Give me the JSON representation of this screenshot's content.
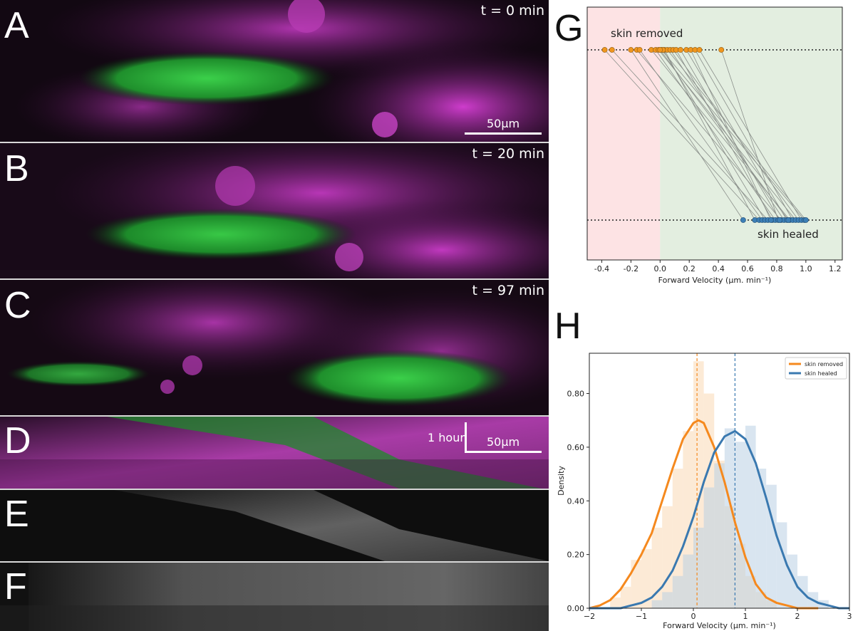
{
  "panels": {
    "a": {
      "label": "A",
      "time": "t = 0 min",
      "scale": "50µm"
    },
    "b": {
      "label": "B",
      "time": "t = 20 min"
    },
    "c": {
      "label": "C",
      "time": "t = 97 min"
    },
    "d": {
      "label": "D",
      "time_scale": "1 hour",
      "scale": "50µm"
    },
    "e": {
      "label": "E"
    },
    "f": {
      "label": "F"
    }
  },
  "chart_data": [
    {
      "id": "G",
      "label": "G",
      "type": "scatter",
      "xlabel": "Forward Velocity (µm. min⁻¹)",
      "xlim": [
        -0.5,
        1.25
      ],
      "xticks": [
        "-0.4",
        "-0.2",
        "0.0",
        "0.2",
        "0.4",
        "0.6",
        "0.8",
        "1.0",
        "1.2"
      ],
      "xtick_values": [
        -0.4,
        -0.2,
        0.0,
        0.2,
        0.4,
        0.6,
        0.8,
        1.0,
        1.2
      ],
      "background": {
        "negative_color": "#fde3e4",
        "positive_color": "#e3eee0"
      },
      "annotations": [
        "skin removed",
        "skin healed"
      ],
      "series": [
        {
          "name": "skin removed",
          "color": "#f0961e",
          "x": [
            -0.38,
            -0.33,
            -0.2,
            -0.16,
            -0.14,
            -0.06,
            -0.03,
            -0.01,
            0.01,
            0.03,
            0.05,
            0.07,
            0.09,
            0.11,
            0.14,
            0.18,
            0.21,
            0.24,
            0.27,
            0.42,
            0.02,
            0.0
          ]
        },
        {
          "name": "skin healed",
          "color": "#3d7fb6",
          "x": [
            0.57,
            0.65,
            0.68,
            0.7,
            0.72,
            0.74,
            0.77,
            0.79,
            0.81,
            0.83,
            0.85,
            0.87,
            0.89,
            0.91,
            0.93,
            0.95,
            0.97,
            0.99,
            1.0,
            0.76,
            0.82,
            0.88
          ]
        }
      ],
      "links": [
        [
          0,
          2
        ],
        [
          1,
          5
        ],
        [
          2,
          0
        ],
        [
          3,
          9
        ],
        [
          4,
          3
        ],
        [
          5,
          12
        ],
        [
          6,
          7
        ],
        [
          7,
          14
        ],
        [
          8,
          17
        ],
        [
          9,
          1
        ],
        [
          10,
          18
        ],
        [
          11,
          10
        ],
        [
          12,
          15
        ],
        [
          13,
          6
        ],
        [
          14,
          20
        ],
        [
          15,
          11
        ],
        [
          16,
          19
        ],
        [
          17,
          13
        ],
        [
          18,
          16
        ],
        [
          19,
          8
        ],
        [
          20,
          4
        ],
        [
          21,
          21
        ]
      ]
    },
    {
      "id": "H",
      "label": "H",
      "type": "area",
      "xlabel": "Forward Velocity (µm. min⁻¹)",
      "ylabel": "Density",
      "xlim": [
        -2,
        3
      ],
      "ylim": [
        0,
        0.95
      ],
      "xticks": [
        "−2",
        "−1",
        "0",
        "1",
        "2",
        "3"
      ],
      "xtick_values": [
        -2,
        -1,
        0,
        1,
        2,
        3
      ],
      "yticks": [
        "0.00",
        "0.20",
        "0.40",
        "0.60",
        "0.80"
      ],
      "ytick_values": [
        0,
        0.2,
        0.4,
        0.6,
        0.8
      ],
      "legend_position": "top-right",
      "series": [
        {
          "name": "skin removed",
          "color": "#f5891e",
          "mean_line": 0.07,
          "kde": {
            "x": [
              -2.0,
              -1.8,
              -1.6,
              -1.4,
              -1.2,
              -1.0,
              -0.8,
              -0.6,
              -0.4,
              -0.2,
              0.0,
              0.1,
              0.2,
              0.4,
              0.6,
              0.8,
              1.0,
              1.2,
              1.4,
              1.6,
              1.8,
              2.0,
              2.2,
              2.4
            ],
            "y": [
              0.0,
              0.01,
              0.03,
              0.07,
              0.13,
              0.2,
              0.28,
              0.4,
              0.52,
              0.63,
              0.69,
              0.7,
              0.69,
              0.6,
              0.47,
              0.32,
              0.19,
              0.09,
              0.04,
              0.02,
              0.01,
              0.0,
              0.0,
              0.0
            ]
          },
          "hist": {
            "bin_edges": [
              -1.6,
              -1.4,
              -1.2,
              -1.0,
              -0.8,
              -0.6,
              -0.4,
              -0.2,
              0.0,
              0.2,
              0.4,
              0.6,
              0.8,
              1.0,
              1.2,
              1.4,
              1.6
            ],
            "values": [
              0.04,
              0.08,
              0.18,
              0.22,
              0.3,
              0.38,
              0.52,
              0.66,
              0.92,
              0.8,
              0.55,
              0.38,
              0.24,
              0.12,
              0.06,
              0.03
            ]
          }
        },
        {
          "name": "skin healed",
          "color": "#3a79b0",
          "mean_line": 0.8,
          "kde": {
            "x": [
              -2.0,
              -1.8,
              -1.6,
              -1.4,
              -1.2,
              -1.0,
              -0.8,
              -0.6,
              -0.4,
              -0.2,
              0.0,
              0.2,
              0.4,
              0.6,
              0.8,
              1.0,
              1.2,
              1.4,
              1.6,
              1.8,
              2.0,
              2.2,
              2.4,
              2.6,
              2.8,
              3.0
            ],
            "y": [
              0.0,
              0.0,
              0.0,
              0.0,
              0.01,
              0.02,
              0.04,
              0.08,
              0.14,
              0.23,
              0.34,
              0.47,
              0.58,
              0.64,
              0.66,
              0.63,
              0.54,
              0.41,
              0.27,
              0.16,
              0.08,
              0.04,
              0.02,
              0.01,
              0.0,
              0.0
            ]
          },
          "hist": {
            "bin_edges": [
              -0.8,
              -0.6,
              -0.4,
              -0.2,
              0.0,
              0.2,
              0.4,
              0.6,
              0.8,
              1.0,
              1.2,
              1.4,
              1.6,
              1.8,
              2.0,
              2.2,
              2.4,
              2.6
            ],
            "values": [
              0.03,
              0.06,
              0.12,
              0.2,
              0.3,
              0.45,
              0.54,
              0.67,
              0.62,
              0.68,
              0.52,
              0.46,
              0.32,
              0.2,
              0.12,
              0.06,
              0.03
            ]
          }
        }
      ]
    }
  ]
}
